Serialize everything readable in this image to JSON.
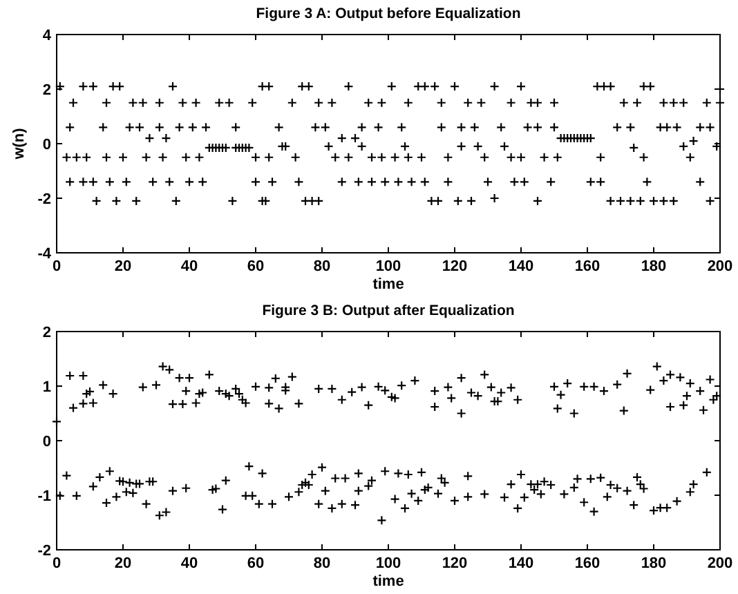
{
  "chart_data": [
    {
      "type": "scatter",
      "title": "Figure 3 A: Output before Equalization",
      "xlabel": "time",
      "ylabel": "w(n)",
      "xlim": [
        0,
        200
      ],
      "xticks": [
        0,
        20,
        40,
        60,
        80,
        100,
        120,
        140,
        160,
        180,
        200
      ],
      "ylim": [
        -4,
        4
      ],
      "yticks": [
        -4,
        -2,
        0,
        2,
        4
      ],
      "marker": "cross",
      "series": [
        {
          "color": "#000000",
          "x": [
            1,
            3,
            4,
            4,
            5,
            6,
            8,
            8,
            9,
            11,
            11,
            12,
            14,
            15,
            15,
            16,
            17,
            18,
            19,
            20,
            21,
            22,
            23,
            24,
            25,
            26,
            27,
            28,
            29,
            31,
            31,
            32,
            33,
            34,
            35,
            36,
            37,
            38,
            39,
            40,
            41,
            42,
            43,
            44,
            45,
            46,
            47,
            48,
            49,
            49,
            50,
            51,
            52,
            53,
            54,
            54,
            55,
            56,
            57,
            58,
            59,
            60,
            60,
            62,
            62,
            63,
            64,
            64,
            65,
            67,
            68,
            69,
            71,
            72,
            73,
            74,
            75,
            76,
            77,
            78,
            79,
            79,
            81,
            82,
            83,
            84,
            86,
            86,
            88,
            88,
            90,
            91,
            92,
            92,
            94,
            95,
            95,
            97,
            98,
            98,
            99,
            101,
            102,
            103,
            104,
            105,
            106,
            106,
            107,
            109,
            110,
            111,
            111,
            113,
            114,
            115,
            116,
            116,
            118,
            118,
            120,
            121,
            122,
            122,
            124,
            125,
            126,
            127,
            128,
            129,
            130,
            132,
            132,
            134,
            135,
            137,
            137,
            138,
            140,
            140,
            141,
            142,
            143,
            145,
            145,
            145,
            147,
            149,
            150,
            150,
            151,
            152,
            153,
            154,
            155,
            156,
            157,
            158,
            159,
            160,
            161,
            161,
            163,
            164,
            164,
            165,
            167,
            167,
            169,
            170,
            171,
            173,
            173,
            174,
            175,
            176,
            177,
            177,
            178,
            179,
            180,
            182,
            183,
            183,
            184,
            186,
            186,
            187,
            189,
            189,
            191,
            192,
            194,
            194,
            196,
            197,
            197,
            199,
            200,
            200
          ],
          "values": [
            2.1,
            -0.5,
            -1.4,
            0.6,
            1.5,
            -0.5,
            -1.4,
            2.1,
            -0.5,
            -1.4,
            2.1,
            -2.1,
            0.6,
            1.5,
            -0.5,
            -1.4,
            2.1,
            -2.1,
            2.1,
            -0.5,
            -1.4,
            0.6,
            1.5,
            -2.1,
            0.6,
            1.5,
            -0.5,
            0.2,
            -1.4,
            1.5,
            0.6,
            -0.5,
            0.2,
            -1.4,
            2.1,
            -2.1,
            0.6,
            1.5,
            -0.5,
            -1.4,
            0.6,
            1.5,
            -0.5,
            -1.4,
            0.6,
            -0.15,
            -0.15,
            -0.15,
            1.5,
            -0.15,
            -0.15,
            -0.15,
            1.5,
            -2.1,
            0.6,
            -0.15,
            -0.15,
            -0.15,
            -0.15,
            -0.15,
            1.5,
            -0.5,
            -1.4,
            -2.1,
            2.1,
            -2.1,
            2.1,
            -0.5,
            -1.4,
            0.6,
            -0.1,
            -0.1,
            1.5,
            -0.5,
            -1.4,
            2.1,
            -2.1,
            2.1,
            -2.1,
            0.6,
            1.5,
            -2.1,
            0.6,
            -0.1,
            1.5,
            -0.5,
            0.2,
            -1.4,
            2.1,
            -0.5,
            0.2,
            -1.4,
            0.6,
            -0.1,
            1.5,
            -0.5,
            -1.4,
            0.6,
            1.5,
            -0.5,
            -1.4,
            2.1,
            -0.5,
            -1.4,
            0.6,
            -0.1,
            1.5,
            -0.5,
            -1.4,
            2.1,
            -0.5,
            -1.4,
            2.1,
            -2.1,
            2.1,
            -2.1,
            0.6,
            1.5,
            -0.5,
            -1.4,
            2.1,
            -2.1,
            0.6,
            -0.1,
            1.5,
            -2.1,
            0.6,
            -0.1,
            1.5,
            -0.5,
            -1.4,
            2.1,
            -2.0,
            0.6,
            -0.1,
            1.5,
            -0.5,
            -1.4,
            2.1,
            -0.5,
            -1.4,
            0.6,
            1.5,
            0.6,
            1.5,
            -2.1,
            -0.5,
            -1.4,
            0.6,
            1.5,
            -0.5,
            0.2,
            0.2,
            0.2,
            0.2,
            0.2,
            0.2,
            0.2,
            0.2,
            0.2,
            0.2,
            -1.4,
            2.1,
            -0.5,
            -1.4,
            2.1,
            2.1,
            -2.1,
            0.6,
            -2.1,
            1.5,
            0.6,
            -2.1,
            -0.15,
            1.5,
            -2.1,
            2.1,
            -0.5,
            -1.4,
            2.1,
            -2.1,
            0.6,
            -2.1,
            1.5,
            0.6,
            -2.1,
            1.5,
            0.6,
            1.5,
            -0.1,
            -0.5,
            0.1,
            -1.4,
            0.6,
            1.5,
            -2.1,
            0.6,
            -0.1,
            1.5,
            2.0
          ]
        }
      ]
    },
    {
      "type": "scatter",
      "title": "Figure 3 B: Output after Equalization",
      "xlabel": "time",
      "xlim": [
        0,
        200
      ],
      "xticks": [
        0,
        20,
        40,
        60,
        80,
        100,
        120,
        140,
        160,
        180,
        200
      ],
      "ylim": [
        -2,
        2
      ],
      "yticks": [
        -2,
        -1,
        0,
        1,
        2
      ],
      "marker": "cross",
      "series": [
        {
          "color": "#000000",
          "x": [
            0,
            1,
            3,
            4,
            5,
            6,
            8,
            8,
            9,
            10,
            11,
            11,
            13,
            14,
            15,
            16,
            17,
            18,
            19,
            20,
            21,
            22,
            23,
            24,
            25,
            26,
            27,
            28,
            29,
            30,
            31,
            32,
            33,
            34,
            35,
            35,
            37,
            38,
            39,
            39,
            40,
            42,
            43,
            44,
            46,
            47,
            48,
            49,
            50,
            51,
            51,
            52,
            54,
            55,
            56,
            57,
            57,
            58,
            59,
            60,
            61,
            62,
            64,
            64,
            65,
            66,
            67,
            69,
            69,
            70,
            71,
            73,
            73,
            74,
            75,
            76,
            77,
            79,
            79,
            80,
            81,
            83,
            83,
            84,
            86,
            86,
            87,
            89,
            90,
            91,
            91,
            92,
            94,
            94,
            95,
            97,
            98,
            99,
            99,
            101,
            102,
            102,
            103,
            104,
            105,
            106,
            107,
            108,
            109,
            110,
            111,
            112,
            114,
            114,
            115,
            116,
            117,
            118,
            119,
            120,
            122,
            122,
            124,
            124,
            125,
            127,
            129,
            129,
            131,
            132,
            133,
            134,
            135,
            137,
            137,
            139,
            139,
            140,
            141,
            143,
            144,
            145,
            146,
            147,
            149,
            150,
            151,
            152,
            153,
            154,
            156,
            156,
            157,
            159,
            159,
            161,
            162,
            162,
            164,
            165,
            166,
            167,
            169,
            169,
            171,
            172,
            172,
            174,
            175,
            176,
            177,
            179,
            180,
            181,
            182,
            183,
            184,
            185,
            185,
            187,
            188,
            189,
            190,
            191,
            191,
            192,
            194,
            195,
            196,
            197,
            198,
            199
          ],
          "values": [
            0.35,
            -1.01,
            -0.64,
            1.19,
            0.6,
            -1.01,
            1.19,
            0.68,
            0.86,
            0.9,
            0.69,
            -0.84,
            -0.67,
            1.02,
            -1.14,
            -0.56,
            0.86,
            -1.03,
            -0.74,
            -0.75,
            -0.94,
            -0.77,
            -0.96,
            -0.79,
            -0.79,
            0.98,
            -1.16,
            -0.75,
            -0.75,
            1.02,
            -1.37,
            1.36,
            -1.31,
            1.3,
            0.67,
            -0.92,
            1.15,
            0.67,
            0.91,
            -0.87,
            1.15,
            0.69,
            0.86,
            0.88,
            1.21,
            -0.9,
            -0.88,
            0.91,
            -1.26,
            0.86,
            -0.73,
            0.82,
            0.95,
            0.86,
            0.75,
            0.69,
            -1.01,
            -0.47,
            -1.01,
            0.99,
            -1.16,
            -0.6,
            0.97,
            0.68,
            -1.16,
            1.14,
            0.59,
            0.92,
            0.98,
            -1.03,
            1.17,
            0.68,
            -0.94,
            -0.81,
            -0.77,
            -0.81,
            -0.62,
            -1.16,
            0.95,
            -0.49,
            -0.92,
            0.95,
            -1.24,
            -0.69,
            0.75,
            -1.16,
            -0.69,
            0.89,
            -1.18,
            -0.6,
            -0.92,
            0.98,
            0.65,
            -0.83,
            -0.73,
            0.99,
            -1.46,
            -0.56,
            0.92,
            0.8,
            0.78,
            -1.07,
            -0.6,
            1.01,
            -1.24,
            -0.62,
            -0.97,
            1.1,
            -1.1,
            -0.58,
            -0.9,
            -0.86,
            0.91,
            0.62,
            -0.97,
            -0.69,
            -0.77,
            0.98,
            0.78,
            -1.1,
            1.15,
            0.5,
            -1.03,
            -0.65,
            0.88,
            0.82,
            -0.98,
            1.21,
            0.98,
            0.72,
            0.72,
            0.88,
            -1.04,
            -0.8,
            0.97,
            0.75,
            -1.24,
            -0.62,
            -1.04,
            -0.8,
            -0.9,
            -0.8,
            -0.98,
            -0.75,
            -0.81,
            0.99,
            0.59,
            0.84,
            -0.98,
            1.05,
            0.5,
            -0.86,
            -0.7,
            0.99,
            -1.13,
            -0.7,
            0.99,
            -1.3,
            -0.68,
            0.91,
            -1.03,
            -0.81,
            -0.87,
            1.03,
            0.55,
            -0.92,
            1.23,
            -1.18,
            -0.67,
            -0.8,
            -0.88,
            0.93,
            -1.28,
            1.36,
            -1.23,
            1.1,
            -1.23,
            1.21,
            0.62,
            -1.11,
            1.16,
            0.65,
            0.82,
            1.05,
            -0.94,
            -0.8,
            0.91,
            0.56,
            -0.58,
            1.12,
            0.75,
            0.82
          ]
        }
      ]
    }
  ]
}
